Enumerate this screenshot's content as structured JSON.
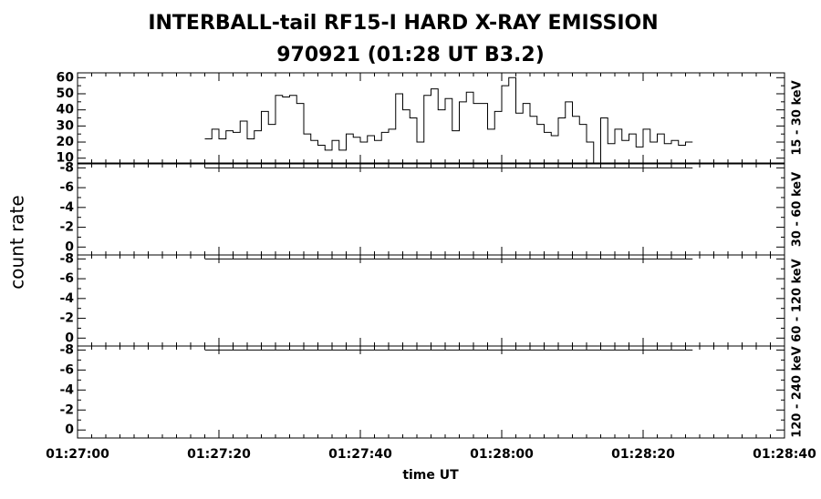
{
  "figure": {
    "title": "INTERBALL-tail  RF15-I  HARD  X-RAY  EMISSION",
    "subtitle": "970921     (01:28 UT     B3.2)",
    "xlabel": "time UT",
    "ylabel": "count rate",
    "xlim": [
      5220,
      5320
    ],
    "xticks": [
      {
        "value": 5220,
        "label": "01:27:00"
      },
      {
        "value": 5240,
        "label": "01:27:20"
      },
      {
        "value": 5260,
        "label": "01:27:40"
      },
      {
        "value": 5280,
        "label": "01:28:00"
      },
      {
        "value": 5300,
        "label": "01:28:20"
      },
      {
        "value": 5320,
        "label": "01:28:40"
      }
    ]
  },
  "chart_data": [
    {
      "type": "step",
      "label": "15 - 30 keV",
      "color": "#000000",
      "ylim": [
        7,
        63
      ],
      "yticks": [
        10,
        20,
        30,
        40,
        50,
        60
      ],
      "x": [
        5238,
        5239,
        5240,
        5241,
        5242,
        5243,
        5244,
        5245,
        5246,
        5247,
        5248,
        5249,
        5250,
        5251,
        5252,
        5253,
        5254,
        5255,
        5256,
        5257,
        5258,
        5259,
        5260,
        5261,
        5262,
        5263,
        5264,
        5265,
        5266,
        5267,
        5268,
        5269,
        5270,
        5271,
        5272,
        5273,
        5274,
        5275,
        5276,
        5277,
        5278,
        5279,
        5280,
        5281,
        5282,
        5283,
        5284,
        5285,
        5286,
        5287,
        5288,
        5289,
        5290,
        5291,
        5292,
        5293,
        5294,
        5295,
        5296,
        5297,
        5298,
        5299,
        5300,
        5301,
        5302,
        5303,
        5304,
        5305,
        5306
      ],
      "values": [
        22,
        28,
        22,
        27,
        26,
        33,
        22,
        27,
        39,
        31,
        49,
        48,
        49,
        44,
        25,
        21,
        18,
        15,
        21,
        15,
        25,
        23,
        20,
        24,
        21,
        26,
        28,
        50,
        40,
        35,
        20,
        49,
        53,
        40,
        47,
        27,
        45,
        51,
        44,
        44,
        28,
        39,
        55,
        60,
        38,
        44,
        36,
        31,
        26,
        24,
        35,
        45,
        36,
        31,
        20,
        7,
        35,
        19,
        28,
        21,
        25,
        17,
        28,
        20,
        25,
        19,
        21,
        18,
        20
      ]
    },
    {
      "type": "line",
      "label": "30 - 60 keV",
      "color": "#000000",
      "ylim": [
        0.8,
        -8.4
      ],
      "yticks": [
        0,
        -2,
        -4,
        -6,
        -8
      ],
      "x": [
        5238,
        5307
      ],
      "values": [
        -8,
        -8
      ]
    },
    {
      "type": "line",
      "label": "60 - 120 keV",
      "color": "#000000",
      "ylim": [
        0.8,
        -8.4
      ],
      "yticks": [
        0,
        -2,
        -4,
        -6,
        -8
      ],
      "x": [
        5238,
        5307
      ],
      "values": [
        -8,
        -8
      ]
    },
    {
      "type": "line",
      "label": "120 - 240 keV",
      "color": "#000000",
      "ylim": [
        0.8,
        -8.4
      ],
      "yticks": [
        0,
        -2,
        -4,
        -6,
        -8
      ],
      "x": [
        5238,
        5307
      ],
      "values": [
        -8,
        -8
      ]
    }
  ]
}
